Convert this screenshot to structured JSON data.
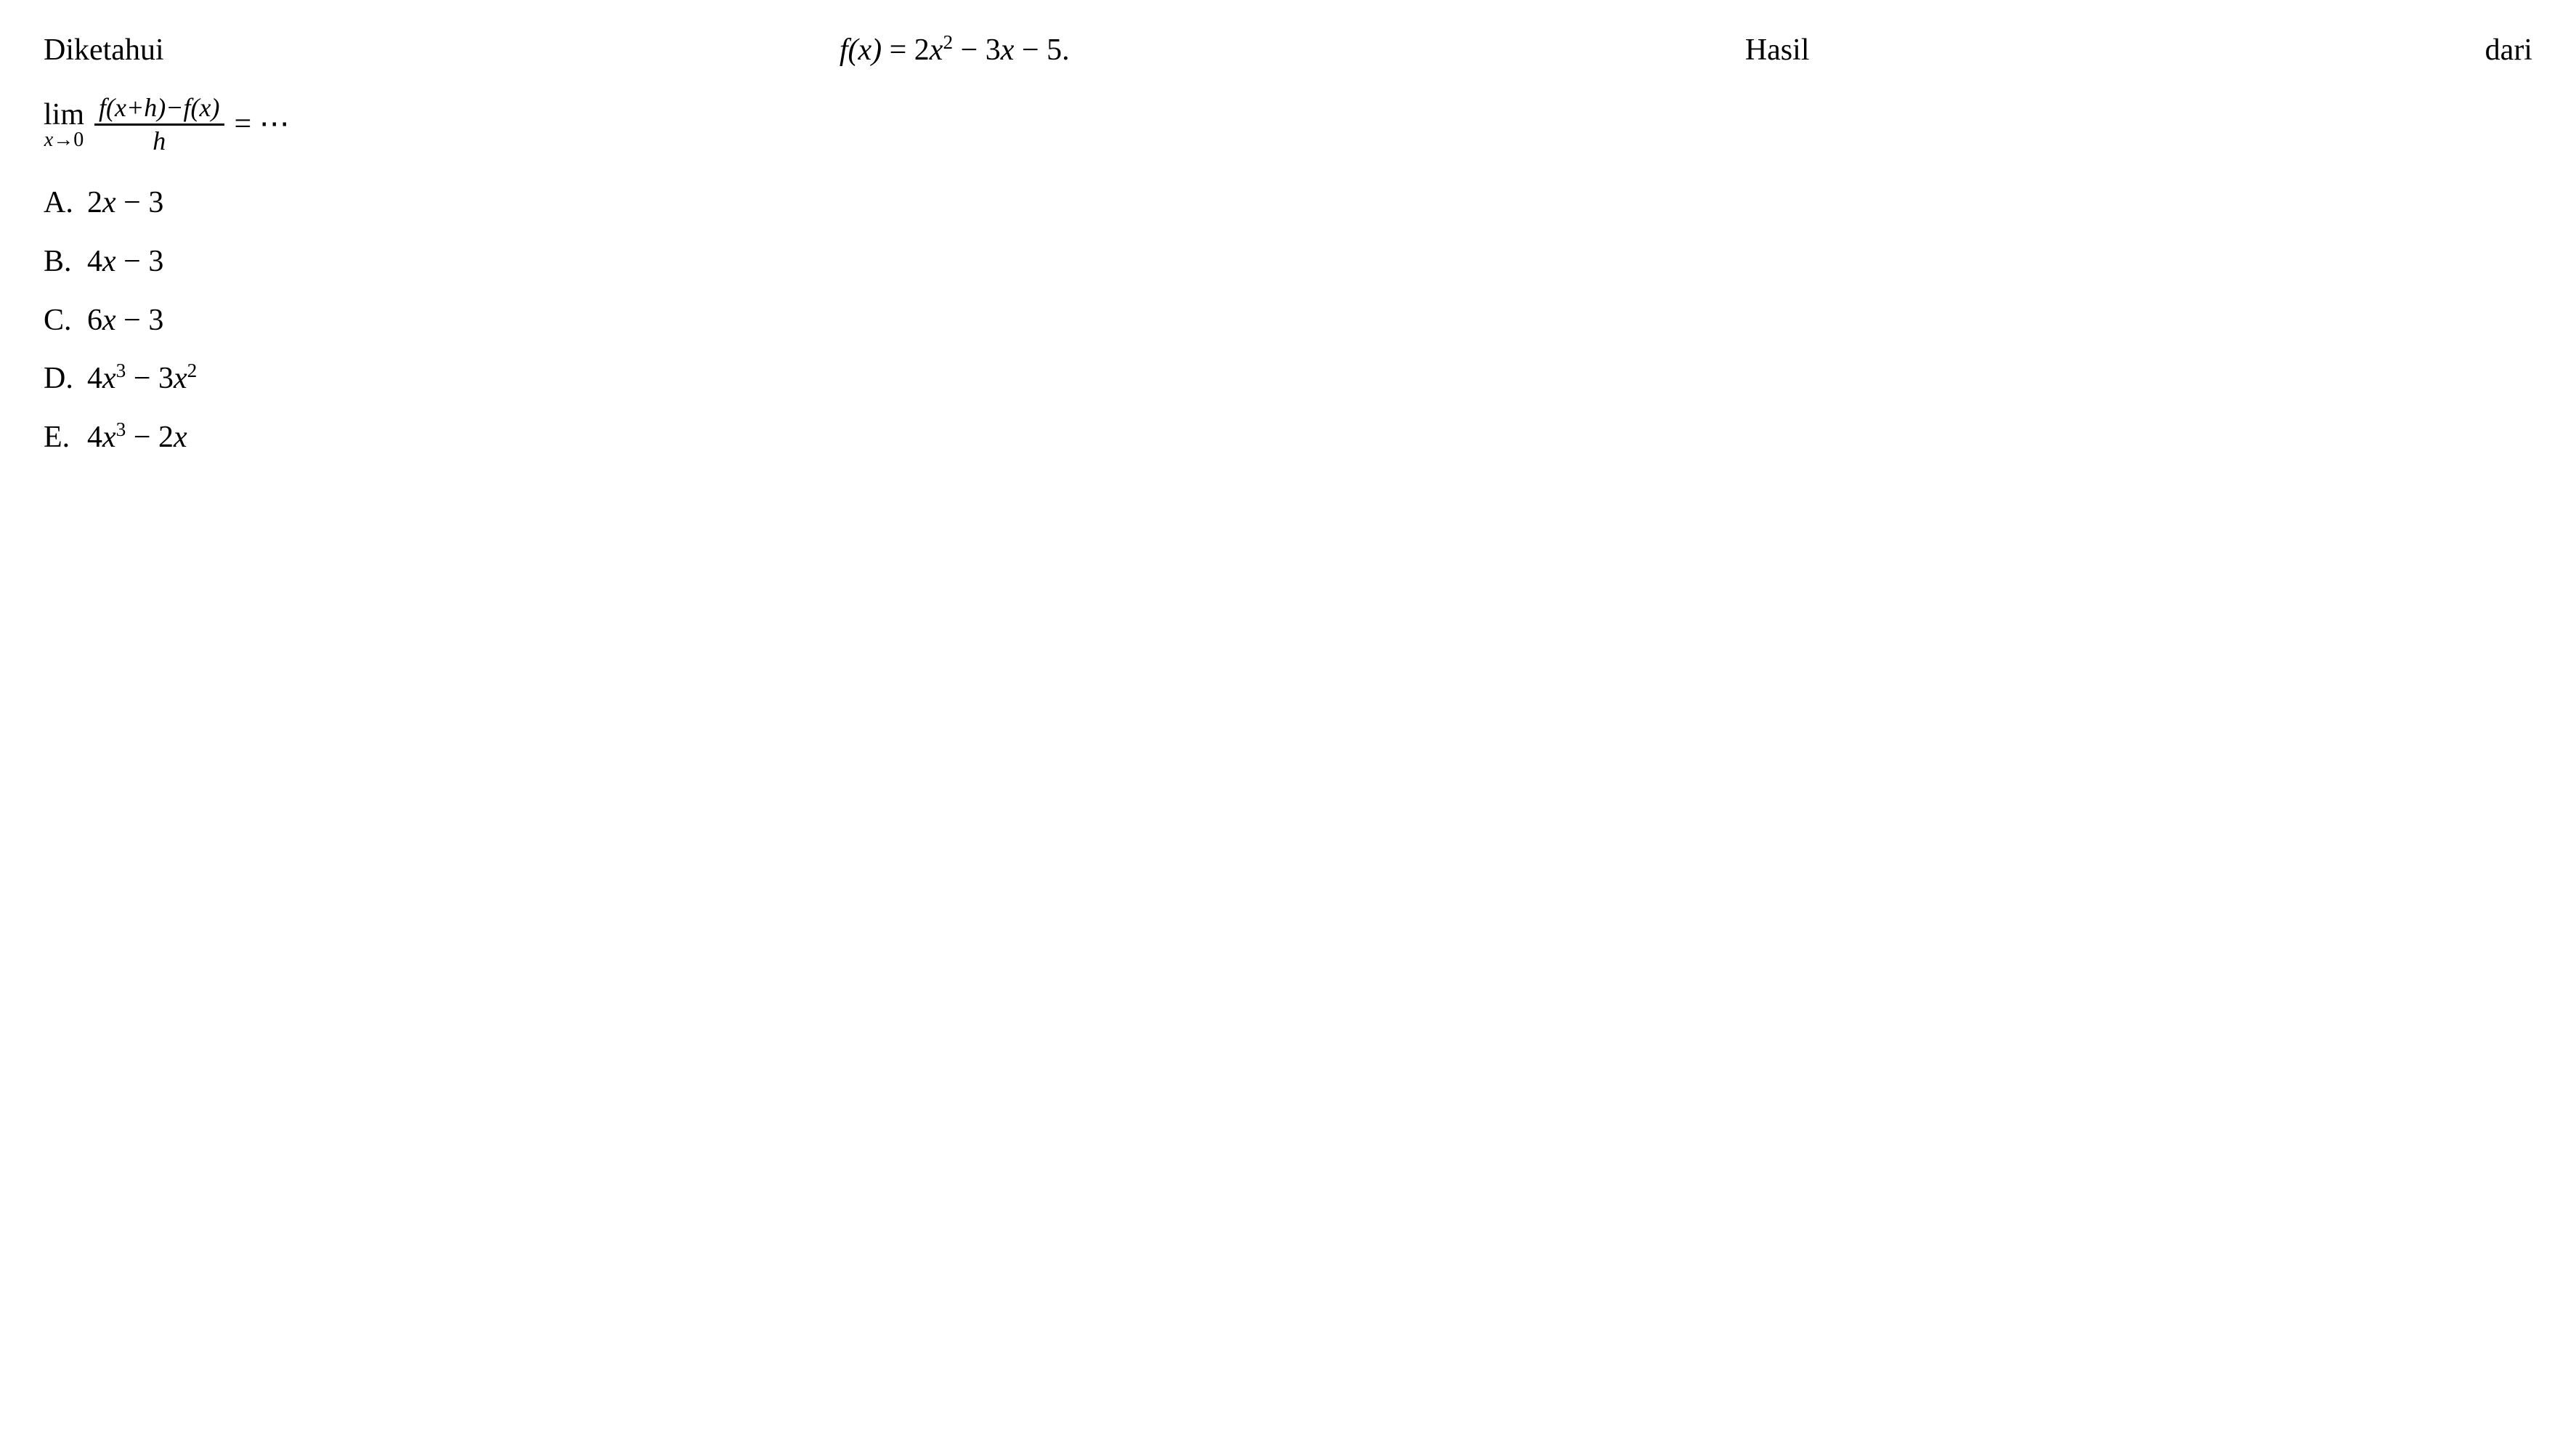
{
  "colors": {
    "background": "#ffffff",
    "text": "#000000",
    "fraction_bar": "#000000"
  },
  "typography": {
    "base_fontsize_pt": 42,
    "sub_fontsize_pt": 28,
    "frac_fontsize_pt": 36,
    "sup_scale": 0.65,
    "font_family": "Times New Roman"
  },
  "question": {
    "word1": "Diketahui",
    "formula_lhs": "f(x)",
    "formula_eq": " = ",
    "formula_rhs_a": "2",
    "formula_rhs_var1": "x",
    "formula_rhs_exp1": "2",
    "formula_rhs_b": " − 3",
    "formula_rhs_var2": "x",
    "formula_rhs_c": " − 5.",
    "word2": "Hasil",
    "word3": "dari"
  },
  "limit": {
    "lim_label": "lim",
    "lim_sub_var": "x",
    "lim_sub_arrow": "→0",
    "numerator": "f(x+h)−f(x)",
    "denominator": "h",
    "equals": " = ",
    "dots": "⋯"
  },
  "options": {
    "a": {
      "letter": "A.",
      "prefix": "2",
      "var1": "x",
      "mid": " − 3",
      "var2": "",
      "exp1": "",
      "exp2": ""
    },
    "b": {
      "letter": "B.",
      "prefix": "4",
      "var1": "x",
      "mid": " − 3",
      "var2": "",
      "exp1": "",
      "exp2": ""
    },
    "c": {
      "letter": "C.",
      "prefix": "6",
      "var1": "x",
      "mid": " − 3",
      "var2": "",
      "exp1": "",
      "exp2": ""
    },
    "d": {
      "letter": "D.",
      "prefix": "4",
      "var1": "x",
      "exp1": "3",
      "mid": " − 3",
      "var2": "x",
      "exp2": "2"
    },
    "e": {
      "letter": "E.",
      "prefix": "4",
      "var1": "x",
      "exp1": "3",
      "mid": " − 2",
      "var2": "x",
      "exp2": ""
    }
  }
}
